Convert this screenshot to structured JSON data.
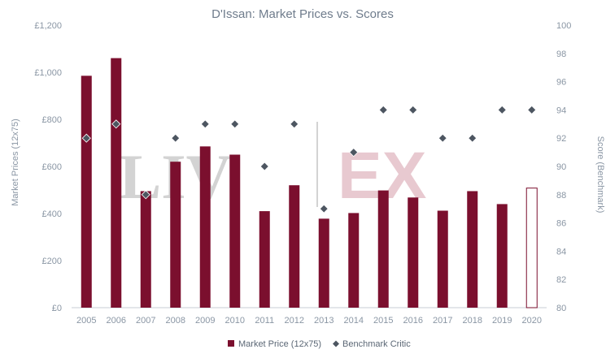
{
  "chart_data": {
    "type": "bar",
    "title": "D'Issan: Market Prices vs. Scores",
    "xlabel": "",
    "ylabel": "Market Prices (12x75)",
    "y2label": "Score (Benchmark)",
    "categories": [
      "2005",
      "2006",
      "2007",
      "2008",
      "2009",
      "2010",
      "2011",
      "2012",
      "2013",
      "2014",
      "2015",
      "2016",
      "2017",
      "2018",
      "2019",
      "2020"
    ],
    "ylim": [
      0,
      1200
    ],
    "y2lim": [
      80,
      100
    ],
    "yticks": [
      "£0",
      "£200",
      "£400",
      "£600",
      "£800",
      "£1,000",
      "£1,200"
    ],
    "y2ticks": [
      "80",
      "82",
      "84",
      "86",
      "88",
      "90",
      "92",
      "94",
      "96",
      "98",
      "100"
    ],
    "series": [
      {
        "name": "Market Price (12x75)",
        "type": "bar",
        "axis": "left",
        "color": "#7b0f2e",
        "values": [
          985,
          1060,
          495,
          620,
          685,
          650,
          410,
          520,
          378,
          402,
          498,
          468,
          412,
          495,
          440,
          508
        ],
        "outlined_last": true
      },
      {
        "name": "Benchmark Critic",
        "type": "scatter",
        "axis": "right",
        "marker": "diamond",
        "color": "#4d5661",
        "values": [
          92,
          93,
          88,
          92,
          93,
          93,
          90,
          93,
          87,
          91,
          94,
          94,
          92,
          92,
          94,
          94
        ]
      }
    ],
    "legend_position": "bottom-center",
    "grid": false
  },
  "watermark": {
    "left": "LIV",
    "right": "EX",
    "left_color": "#d3d3d3",
    "right_color": "#e8c9d0"
  }
}
